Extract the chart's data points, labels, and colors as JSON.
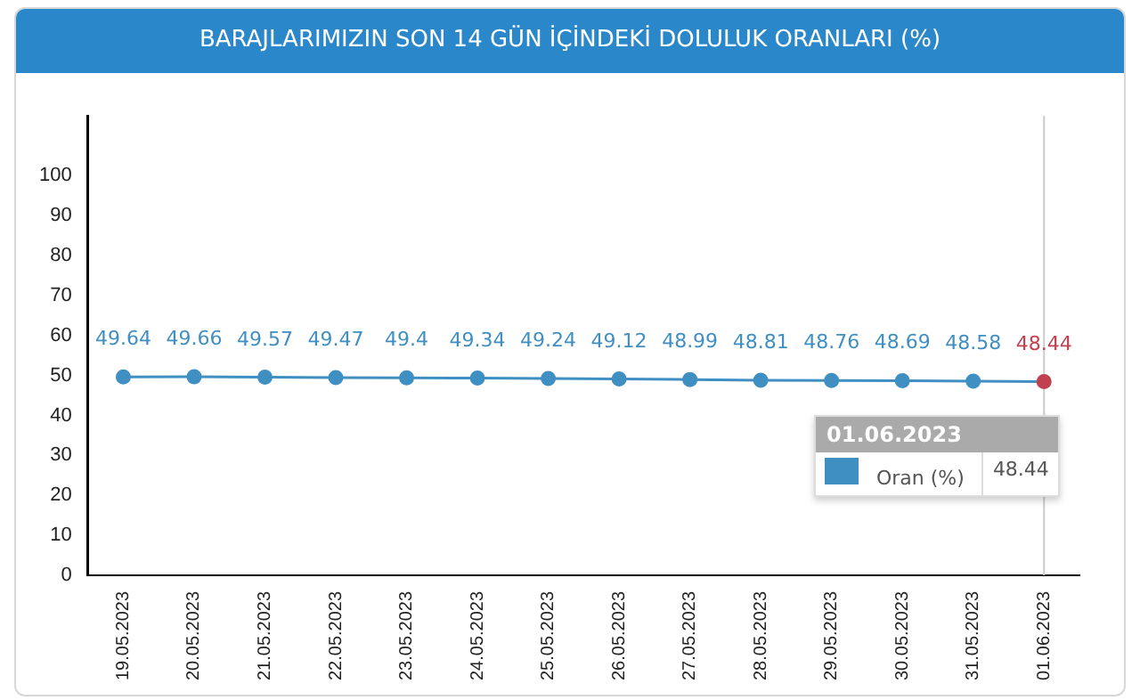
{
  "chart_data": {
    "type": "line",
    "title": "BARAJLARIMIZIN SON 14 GÜN İÇİNDEKİ DOLULUK ORANLARI (%)",
    "categories": [
      "19.05.2023",
      "20.05.2023",
      "21.05.2023",
      "22.05.2023",
      "23.05.2023",
      "24.05.2023",
      "25.05.2023",
      "26.05.2023",
      "27.05.2023",
      "28.05.2023",
      "29.05.2023",
      "30.05.2023",
      "31.05.2023",
      "01.06.2023"
    ],
    "series": [
      {
        "name": "Oran (%)",
        "color": "#3f8fc2",
        "colors": [
          "#3f8fc2",
          "#3f8fc2",
          "#3f8fc2",
          "#3f8fc2",
          "#3f8fc2",
          "#3f8fc2",
          "#3f8fc2",
          "#3f8fc2",
          "#3f8fc2",
          "#3f8fc2",
          "#3f8fc2",
          "#3f8fc2",
          "#3f8fc2",
          "#c04050"
        ],
        "values": [
          49.64,
          49.66,
          49.57,
          49.47,
          49.4,
          49.34,
          49.24,
          49.12,
          48.99,
          48.81,
          48.76,
          48.69,
          48.58,
          48.44
        ]
      }
    ],
    "ylim": [
      0,
      115
    ],
    "yticks": [
      0,
      10,
      20,
      30,
      40,
      50,
      60,
      70,
      80,
      90,
      100
    ],
    "ref_lines": [
      {
        "axis": "x",
        "value": "01.06.2023",
        "color": "#cccccc"
      }
    ],
    "annotations": [
      "48.44"
    ],
    "data_labels": true,
    "marker": "circle",
    "grid": false,
    "legend": "bottom right"
  }
}
